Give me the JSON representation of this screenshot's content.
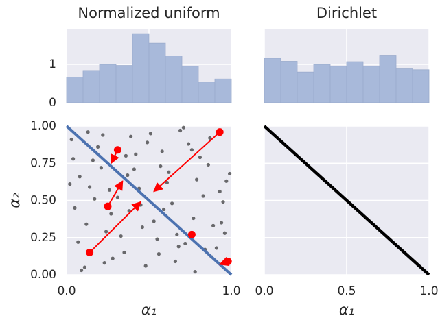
{
  "chart_data": [
    {
      "type": "histogram",
      "title": "Normalized uniform",
      "color": "#a8b9da",
      "bins": [
        0,
        0.1,
        0.2,
        0.3,
        0.4,
        0.5,
        0.6,
        0.7,
        0.8,
        0.9,
        1
      ],
      "values": [
        0.67,
        0.84,
        1.0,
        0.97,
        1.8,
        1.55,
        1.22,
        0.95,
        0.54,
        0.62
      ],
      "xlim": [
        0,
        1
      ],
      "xticks": [
        0,
        0.5,
        1
      ],
      "ylim": [
        0,
        1.91
      ],
      "yticks": [
        0,
        1
      ],
      "grid": true
    },
    {
      "type": "histogram",
      "title": "Dirichlet",
      "color": "#a8b9da",
      "bins": [
        0,
        0.1,
        0.2,
        0.3,
        0.4,
        0.5,
        0.6,
        0.7,
        0.8,
        0.9,
        1
      ],
      "values": [
        1.16,
        1.08,
        0.8,
        1.0,
        0.95,
        1.07,
        0.95,
        1.24,
        0.9,
        0.86
      ],
      "xlim": [
        0,
        1
      ],
      "xticks": [
        0,
        0.5,
        1
      ],
      "ylim": [
        0,
        1.91
      ],
      "yticks": [
        0,
        1
      ],
      "grid": true
    },
    {
      "type": "scatter",
      "x_label": "α₁",
      "y_label": "α₂",
      "point_color": "#222222",
      "x": [
        0.03,
        0.12,
        0.21,
        0.35,
        0.44,
        0.58,
        0.67,
        0.79,
        0.88,
        0.95,
        0.07,
        0.16,
        0.27,
        0.39,
        0.48,
        0.53,
        0.62,
        0.74,
        0.83,
        0.91,
        0.02,
        0.11,
        0.24,
        0.31,
        0.42,
        0.56,
        0.69,
        0.77,
        0.86,
        0.97,
        0.05,
        0.19,
        0.28,
        0.37,
        0.46,
        0.51,
        0.64,
        0.72,
        0.81,
        0.93,
        0.09,
        0.14,
        0.22,
        0.33,
        0.41,
        0.59,
        0.66,
        0.76,
        0.89,
        0.99,
        0.04,
        0.17,
        0.26,
        0.38,
        0.49,
        0.55,
        0.61,
        0.71,
        0.84,
        0.94,
        0.08,
        0.13,
        0.23,
        0.36,
        0.45,
        0.57,
        0.68,
        0.78,
        0.87,
        0.96
      ],
      "y": [
        0.91,
        0.34,
        0.72,
        0.15,
        0.58,
        0.83,
        0.27,
        0.64,
        0.12,
        0.49,
        0.22,
        0.77,
        0.41,
        0.93,
        0.06,
        0.36,
        0.69,
        0.88,
        0.53,
        0.18,
        0.61,
        0.05,
        0.29,
        0.52,
        0.81,
        0.14,
        0.97,
        0.38,
        0.74,
        0.63,
        0.45,
        0.86,
        0.11,
        0.67,
        0.32,
        0.95,
        0.48,
        0.21,
        0.79,
        0.56,
        0.03,
        0.59,
        0.94,
        0.26,
        0.71,
        0.44,
        0.09,
        0.84,
        0.33,
        0.68,
        0.78,
        0.51,
        0.57,
        0.43,
        0.89,
        0.24,
        0.62,
        0.99,
        0.17,
        0.35,
        0.66,
        0.96,
        0.08,
        0.8,
        0.47,
        0.73,
        0.19,
        0.02,
        0.92,
        0.28
      ],
      "line": {
        "color": "#4c72b0",
        "x": [
          0,
          1
        ],
        "y": [
          1,
          0
        ]
      },
      "highlight": {
        "color": "#ff0000",
        "x": [
          0.14,
          0.25,
          0.31,
          0.93,
          0.76,
          0.98
        ],
        "y": [
          0.15,
          0.46,
          0.84,
          0.96,
          0.27,
          0.09
        ]
      },
      "arrows": [
        [
          0.14,
          0.15,
          0.45,
          0.49
        ],
        [
          0.25,
          0.46,
          0.34,
          0.63
        ],
        [
          0.31,
          0.84,
          0.27,
          0.75
        ],
        [
          0.93,
          0.96,
          0.53,
          0.56
        ],
        [
          0.98,
          0.09,
          0.93,
          0.07
        ]
      ],
      "xlim": [
        0,
        1
      ],
      "xticks": [
        {
          "value": 0,
          "label": "0.0"
        },
        {
          "value": 1,
          "label": "1.0"
        }
      ],
      "ylim": [
        0,
        1
      ],
      "yticks": [
        {
          "value": 0,
          "label": "0.00"
        },
        {
          "value": 0.25,
          "label": "0.25"
        },
        {
          "value": 0.5,
          "label": "0.50"
        },
        {
          "value": 0.75,
          "label": "0.75"
        },
        {
          "value": 1,
          "label": "1.00"
        }
      ],
      "grid": true
    },
    {
      "type": "line",
      "x_label": "α₁",
      "line": {
        "color": "#000000",
        "x": [
          0,
          1
        ],
        "y": [
          1,
          0
        ]
      },
      "xlim": [
        0,
        1
      ],
      "xticks": [
        {
          "value": 0,
          "label": "0.0"
        },
        {
          "value": 0.5,
          "label": "0.5"
        },
        {
          "value": 1,
          "label": "1.0"
        }
      ],
      "ylim": [
        0,
        1
      ],
      "yticks": [
        0,
        0.25,
        0.5,
        0.75,
        1
      ],
      "grid": true
    }
  ]
}
